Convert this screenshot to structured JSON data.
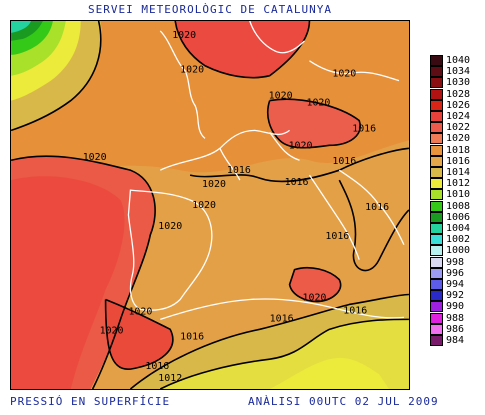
{
  "header": {
    "title": "SERVEI METEOROLÒGIC DE CATALUNYA"
  },
  "footer": {
    "left": "PRESSIÓ EN SUPERFÍCIE",
    "right": "ANÀLISI 00UTC 02 JUL 2009"
  },
  "legend": [
    {
      "label": "1040",
      "color": "#3a0a12"
    },
    {
      "label": "1034",
      "color": "#5e0d14"
    },
    {
      "label": "1030",
      "color": "#8a0f12"
    },
    {
      "label": "1028",
      "color": "#b31212"
    },
    {
      "label": "1026",
      "color": "#d92418"
    },
    {
      "label": "1024",
      "color": "#e8403a"
    },
    {
      "label": "1022",
      "color": "#ec5a4c"
    },
    {
      "label": "1020",
      "color": "#ef7a56"
    },
    {
      "label": "1018",
      "color": "#e8943c"
    },
    {
      "label": "1016",
      "color": "#e4a84a"
    },
    {
      "label": "1014",
      "color": "#d8b848"
    },
    {
      "label": "1012",
      "color": "#ecea3a"
    },
    {
      "label": "1010",
      "color": "#a8e02a"
    },
    {
      "label": "1008",
      "color": "#34c818"
    },
    {
      "label": "1006",
      "color": "#1a9a20"
    },
    {
      "label": "1004",
      "color": "#24d2a0"
    },
    {
      "label": "1002",
      "color": "#3ae0d8"
    },
    {
      "label": "1000",
      "color": "#b8f0f0"
    },
    {
      "label": "998",
      "color": "#d8d8f0"
    },
    {
      "label": "996",
      "color": "#9c9cf4"
    },
    {
      "label": "994",
      "color": "#5c5ce8"
    },
    {
      "label": "992",
      "color": "#2a2ac8"
    },
    {
      "label": "990",
      "color": "#a020e0"
    },
    {
      "label": "988",
      "color": "#e020e0"
    },
    {
      "label": "986",
      "color": "#f070f0"
    },
    {
      "label": "984",
      "color": "#7a1a6a"
    }
  ],
  "isobar_labels": [
    {
      "id": "l1",
      "text": "1020"
    },
    {
      "id": "l2",
      "text": "1020"
    },
    {
      "id": "l3",
      "text": "1020"
    },
    {
      "id": "l4",
      "text": "1020"
    },
    {
      "id": "l5",
      "text": "1016"
    },
    {
      "id": "l6",
      "text": "1020"
    },
    {
      "id": "l7",
      "text": "1020"
    },
    {
      "id": "l8",
      "text": "1016"
    },
    {
      "id": "l9",
      "text": "1020"
    },
    {
      "id": "l10",
      "text": "1016"
    },
    {
      "id": "l11",
      "text": "1020"
    },
    {
      "id": "l12",
      "text": "1016"
    },
    {
      "id": "l13",
      "text": "1020"
    },
    {
      "id": "l14",
      "text": "1016"
    },
    {
      "id": "l15",
      "text": "1016"
    },
    {
      "id": "l16",
      "text": "1020"
    },
    {
      "id": "l17",
      "text": "1020"
    },
    {
      "id": "l18",
      "text": "1020"
    },
    {
      "id": "l19",
      "text": "1016"
    },
    {
      "id": "l20",
      "text": "1020"
    },
    {
      "id": "l21",
      "text": "1016"
    },
    {
      "id": "l22",
      "text": "1016"
    },
    {
      "id": "l23",
      "text": "1012"
    },
    {
      "id": "l24",
      "text": "1016"
    }
  ]
}
